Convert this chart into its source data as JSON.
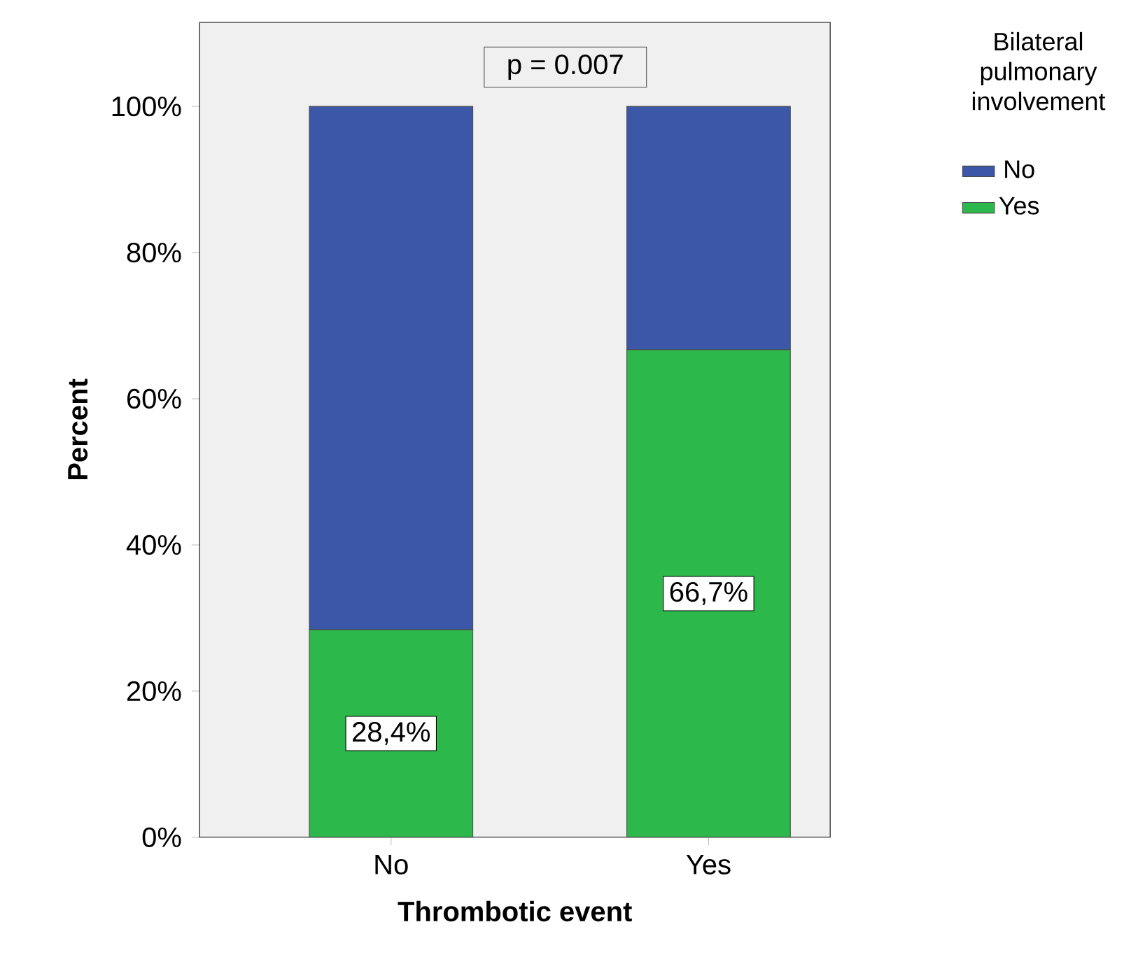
{
  "chart_data": {
    "type": "bar",
    "stacked": true,
    "xlabel": "Thrombotic event",
    "ylabel": "Percent",
    "legend_title": "Bilateral pulmonary involvement",
    "categories": [
      "No",
      "Yes"
    ],
    "series": [
      {
        "name": "Yes",
        "color": "#2db84b",
        "values": [
          28.4,
          66.7
        ],
        "value_labels": [
          "28,4%",
          "66,7%"
        ]
      },
      {
        "name": "No",
        "color": "#3c56a8",
        "values": [
          71.6,
          33.3
        ]
      }
    ],
    "ylim": [
      0,
      111.5
    ],
    "yticks": [
      {
        "value": 0,
        "label": "0%"
      },
      {
        "value": 20,
        "label": "20%"
      },
      {
        "value": 40,
        "label": "40%"
      },
      {
        "value": 60,
        "label": "60%"
      },
      {
        "value": 80,
        "label": "80%"
      },
      {
        "value": 100,
        "label": "100%"
      }
    ],
    "legend": "right",
    "annotations": [
      "p = 0.007"
    ]
  }
}
